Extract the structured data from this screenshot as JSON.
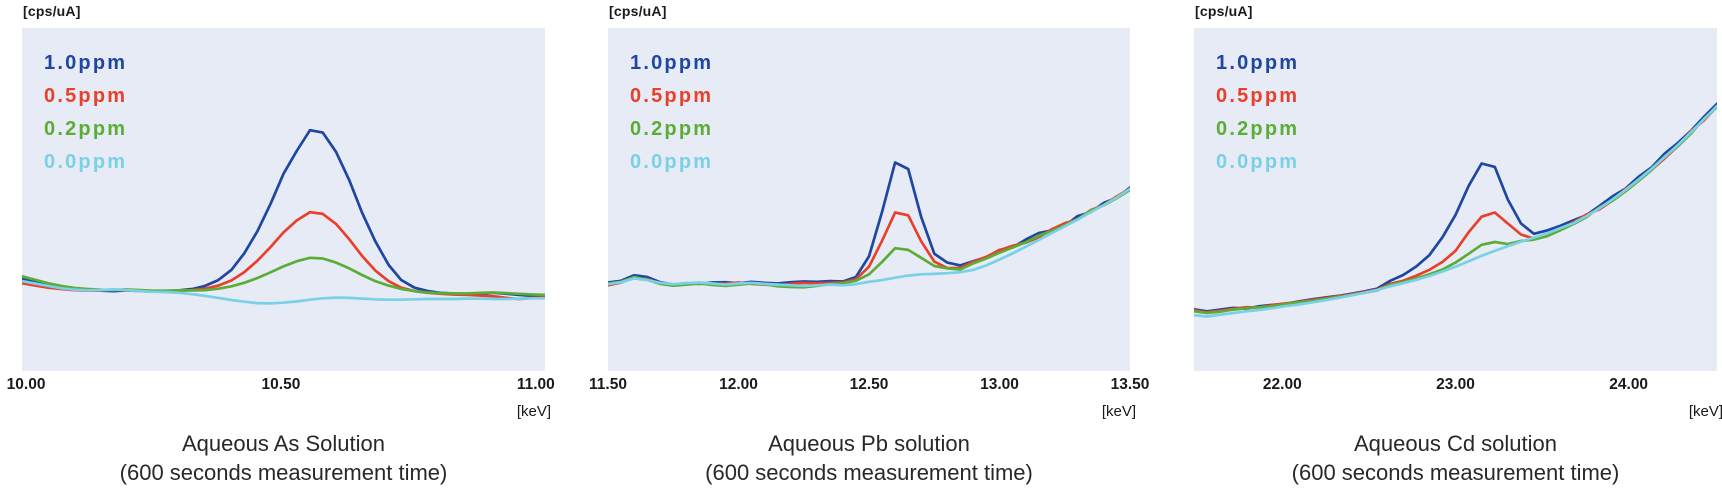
{
  "figure": {
    "description_unit_y": "[cps/uA]",
    "description_unit_x": "[keV]",
    "plot_background": "#e7ebf5"
  },
  "legend": {
    "labels": [
      "1.0ppm",
      "0.5ppm",
      "0.2ppm",
      "0.0ppm"
    ],
    "colors": [
      "#1e47a1",
      "#e8402a",
      "#5cad38",
      "#79d1e6"
    ]
  },
  "chart_data": [
    {
      "type": "line",
      "title": "Aqueous As Solution",
      "subtitle": "(600 seconds measurement time)",
      "ylabel": "[cps/uA]",
      "xlabel_unit": "[keV]",
      "xlim": [
        9.992,
        11.018
      ],
      "ylim": [
        0,
        100
      ],
      "xticks": [
        {
          "value": 10.0,
          "label": "10.00"
        },
        {
          "value": 10.5,
          "label": "10.50"
        },
        {
          "value": 11.0,
          "label": "11.00"
        }
      ],
      "grid": false,
      "legend_position": "top-left",
      "plot_background": "#e7ebf5",
      "x": [
        9.992,
        10.018,
        10.043,
        10.069,
        10.095,
        10.12,
        10.146,
        10.172,
        10.197,
        10.223,
        10.249,
        10.274,
        10.3,
        10.326,
        10.351,
        10.377,
        10.403,
        10.428,
        10.454,
        10.48,
        10.505,
        10.531,
        10.557,
        10.582,
        10.608,
        10.634,
        10.659,
        10.685,
        10.711,
        10.736,
        10.762,
        10.788,
        10.813,
        10.839,
        10.865,
        10.89,
        10.916,
        10.942,
        10.967,
        10.993,
        11.018
      ],
      "series": [
        {
          "name": "1.0ppm",
          "color": "#1e47a1",
          "values": [
            26.8,
            25.9,
            25.0,
            24.2,
            23.8,
            23.6,
            23.4,
            23.3,
            23.5,
            23.4,
            23.2,
            23.3,
            23.5,
            23.9,
            24.8,
            26.5,
            29.5,
            34.3,
            40.8,
            48.9,
            57.5,
            64.2,
            70.2,
            69.5,
            63.9,
            55.6,
            46.2,
            37.8,
            31.0,
            26.5,
            24.3,
            23.3,
            22.8,
            22.6,
            22.5,
            22.6,
            22.8,
            22.5,
            22.2,
            21.9,
            21.7
          ]
        },
        {
          "name": "0.5ppm",
          "color": "#e8402a",
          "values": [
            25.6,
            24.9,
            24.3,
            23.9,
            23.6,
            23.4,
            23.5,
            23.7,
            23.5,
            23.3,
            23.2,
            23.2,
            23.4,
            23.6,
            24.0,
            24.9,
            26.4,
            28.8,
            32.2,
            36.2,
            40.4,
            43.9,
            46.3,
            45.8,
            42.9,
            38.4,
            33.6,
            29.3,
            26.2,
            24.3,
            23.3,
            22.8,
            22.5,
            22.3,
            22.2,
            22.0,
            21.8,
            21.3,
            21.0,
            21.3,
            21.5
          ]
        },
        {
          "name": "0.2ppm",
          "color": "#5cad38",
          "values": [
            27.6,
            26.6,
            25.6,
            24.8,
            24.2,
            23.9,
            23.7,
            23.6,
            23.8,
            23.6,
            23.4,
            23.4,
            23.5,
            23.5,
            23.6,
            24.0,
            24.7,
            25.7,
            27.1,
            28.8,
            30.5,
            32.0,
            33.0,
            32.8,
            31.6,
            29.9,
            28.0,
            26.2,
            24.9,
            23.9,
            23.3,
            22.9,
            22.7,
            22.6,
            22.6,
            22.8,
            22.9,
            22.7,
            22.5,
            22.3,
            22.2
          ]
        },
        {
          "name": "0.0ppm",
          "color": "#79d1e6",
          "values": [
            26.2,
            25.5,
            24.8,
            24.1,
            23.7,
            23.5,
            23.6,
            23.8,
            23.6,
            23.3,
            23.1,
            23.0,
            22.8,
            22.4,
            21.9,
            21.3,
            20.7,
            20.2,
            19.8,
            19.7,
            19.9,
            20.3,
            20.8,
            21.2,
            21.4,
            21.3,
            21.1,
            20.9,
            20.8,
            20.8,
            20.9,
            21.0,
            21.0,
            21.0,
            21.1,
            21.1,
            21.0,
            21.0,
            21.1,
            21.2,
            21.2
          ]
        }
      ]
    },
    {
      "type": "line",
      "title": "Aqueous Pb solution",
      "subtitle": "(600 seconds measurement time)",
      "ylabel": "[cps/uA]",
      "xlabel_unit": "[keV]",
      "xlim": [
        11.5,
        13.5
      ],
      "ylim": [
        0,
        100
      ],
      "xticks": [
        {
          "value": 11.5,
          "label": "11.50"
        },
        {
          "value": 12.0,
          "label": "12.00"
        },
        {
          "value": 12.5,
          "label": "12.50"
        },
        {
          "value": 13.0,
          "label": "13.00"
        },
        {
          "value": 13.5,
          "label": "13.50"
        }
      ],
      "grid": false,
      "legend_position": "top-left",
      "plot_background": "#e7ebf5",
      "x": [
        11.5,
        11.55,
        11.6,
        11.65,
        11.7,
        11.75,
        11.8,
        11.85,
        11.9,
        11.95,
        12.0,
        12.05,
        12.1,
        12.15,
        12.2,
        12.25,
        12.3,
        12.35,
        12.4,
        12.45,
        12.5,
        12.55,
        12.6,
        12.65,
        12.7,
        12.75,
        12.8,
        12.85,
        12.9,
        12.95,
        13.0,
        13.05,
        13.1,
        13.15,
        13.2,
        13.25,
        13.3,
        13.35,
        13.4,
        13.45,
        13.5
      ],
      "series": [
        {
          "name": "1.0ppm",
          "color": "#1e47a1",
          "values": [
            25.8,
            26.3,
            27.9,
            27.4,
            25.9,
            25.2,
            25.6,
            25.4,
            25.8,
            25.9,
            25.6,
            26.0,
            25.7,
            25.5,
            25.9,
            26.1,
            26.0,
            26.2,
            26.1,
            27.4,
            33.4,
            46.4,
            60.8,
            58.9,
            44.9,
            34.2,
            31.6,
            30.8,
            32.0,
            33.2,
            35.3,
            36.0,
            38.3,
            40.2,
            41.0,
            42.3,
            45.2,
            46.3,
            49.0,
            50.5,
            53.5
          ]
        },
        {
          "name": "0.5ppm",
          "color": "#e8402a",
          "values": [
            25.0,
            25.8,
            27.2,
            26.8,
            25.6,
            25.0,
            25.3,
            25.6,
            25.3,
            25.5,
            25.8,
            25.4,
            25.2,
            25.0,
            25.4,
            25.7,
            25.5,
            25.7,
            25.8,
            26.7,
            30.4,
            38.0,
            46.2,
            45.4,
            37.8,
            31.9,
            30.0,
            30.1,
            31.9,
            33.3,
            35.2,
            36.5,
            37.4,
            39.0,
            41.3,
            43.1,
            44.2,
            46.9,
            48.4,
            50.9,
            53.2
          ]
        },
        {
          "name": "0.2ppm",
          "color": "#5cad38",
          "values": [
            25.5,
            26.0,
            27.4,
            26.6,
            25.4,
            24.9,
            25.2,
            25.5,
            25.1,
            24.8,
            25.2,
            25.5,
            25.3,
            24.7,
            24.5,
            24.4,
            24.8,
            25.3,
            25.6,
            26.3,
            28.2,
            31.8,
            35.8,
            35.3,
            33.0,
            30.6,
            29.9,
            29.6,
            31.4,
            32.8,
            34.5,
            36.0,
            37.5,
            39.5,
            40.8,
            42.5,
            44.3,
            46.8,
            48.3,
            50.4,
            52.8
          ]
        },
        {
          "name": "0.0ppm",
          "color": "#79d1e6",
          "values": [
            25.3,
            25.9,
            27.0,
            26.5,
            25.7,
            25.3,
            25.6,
            25.8,
            25.5,
            25.2,
            25.5,
            25.7,
            25.4,
            25.2,
            25.0,
            24.8,
            25.0,
            25.2,
            25.0,
            25.3,
            26.0,
            26.5,
            27.2,
            27.8,
            28.2,
            28.3,
            28.5,
            28.8,
            29.5,
            30.8,
            32.5,
            34.3,
            36.2,
            38.2,
            40.2,
            42.2,
            44.2,
            46.3,
            48.4,
            50.6,
            53.1
          ]
        }
      ]
    },
    {
      "type": "line",
      "title": "Aqueous Cd solution",
      "subtitle": "(600 seconds measurement time)",
      "ylabel": "[cps/uA]",
      "xlabel_unit": "[keV]",
      "xlim": [
        21.49,
        24.51
      ],
      "ylim": [
        0,
        100
      ],
      "xticks": [
        {
          "value": 22.0,
          "label": "22.00"
        },
        {
          "value": 23.0,
          "label": "23.00"
        },
        {
          "value": 24.0,
          "label": "24.00"
        }
      ],
      "grid": false,
      "legend_position": "top-left",
      "plot_background": "#e7ebf5",
      "x": [
        21.49,
        21.566,
        21.641,
        21.717,
        21.792,
        21.868,
        21.943,
        22.019,
        22.094,
        22.17,
        22.245,
        22.321,
        22.396,
        22.472,
        22.547,
        22.623,
        22.698,
        22.774,
        22.849,
        22.925,
        23.0,
        23.076,
        23.151,
        23.227,
        23.302,
        23.378,
        23.453,
        23.529,
        23.604,
        23.68,
        23.755,
        23.831,
        23.906,
        23.982,
        24.057,
        24.133,
        24.208,
        24.284,
        24.359,
        24.435,
        24.51
      ],
      "series": [
        {
          "name": "1.0ppm",
          "color": "#1e47a1",
          "values": [
            18.0,
            17.4,
            17.9,
            18.4,
            18.2,
            18.9,
            19.3,
            19.6,
            20.3,
            20.9,
            21.4,
            21.9,
            22.5,
            23.2,
            24.0,
            26.3,
            28.0,
            30.5,
            33.8,
            39.0,
            45.5,
            54.0,
            60.5,
            59.5,
            50.0,
            43.0,
            40.0,
            41.0,
            42.3,
            43.9,
            45.4,
            48.1,
            50.9,
            53.2,
            56.6,
            59.4,
            63.4,
            66.5,
            70.0,
            74.1,
            77.9
          ]
        },
        {
          "name": "0.5ppm",
          "color": "#e8402a",
          "values": [
            17.7,
            17.1,
            17.6,
            18.1,
            18.6,
            18.5,
            19.2,
            19.7,
            20.1,
            20.7,
            21.2,
            21.8,
            22.3,
            23.0,
            23.7,
            25.4,
            26.3,
            27.8,
            29.5,
            31.8,
            35.0,
            40.5,
            45.0,
            46.2,
            43.0,
            39.8,
            38.6,
            39.6,
            41.5,
            43.3,
            45.6,
            47.1,
            49.7,
            53.1,
            55.5,
            58.7,
            62.0,
            65.6,
            69.9,
            73.1,
            77.2
          ]
        },
        {
          "name": "0.2ppm",
          "color": "#5cad38",
          "values": [
            17.4,
            16.9,
            17.3,
            17.9,
            18.3,
            18.6,
            18.9,
            19.5,
            20.0,
            20.4,
            21.0,
            21.6,
            22.2,
            22.8,
            23.5,
            25.1,
            25.9,
            27.0,
            28.2,
            29.6,
            31.6,
            34.2,
            36.8,
            37.6,
            37.0,
            37.9,
            38.3,
            39.3,
            41.0,
            42.8,
            44.8,
            47.7,
            49.6,
            52.4,
            55.4,
            58.6,
            62.6,
            65.5,
            69.2,
            73.6,
            77.0
          ]
        },
        {
          "name": "0.0ppm",
          "color": "#79d1e6",
          "values": [
            16.3,
            15.9,
            16.4,
            16.9,
            17.4,
            17.8,
            18.3,
            18.9,
            19.4,
            20.0,
            20.6,
            21.3,
            22.0,
            22.8,
            23.6,
            24.7,
            25.6,
            26.6,
            27.7,
            29.0,
            30.4,
            32.0,
            33.6,
            35.0,
            36.4,
            37.7,
            38.9,
            40.1,
            41.6,
            43.1,
            45.1,
            47.4,
            50.0,
            52.8,
            55.8,
            59.0,
            62.4,
            65.9,
            69.6,
            73.4,
            77.3
          ]
        }
      ]
    }
  ]
}
